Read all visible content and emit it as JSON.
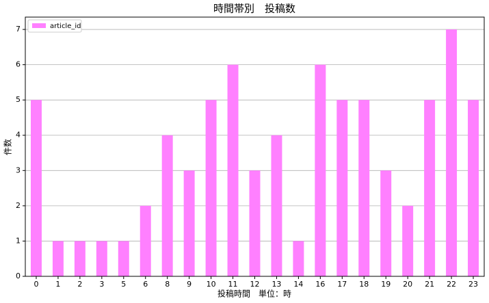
{
  "chart_data": {
    "type": "bar",
    "title": "時間帯別　投稿数",
    "x_label": "投稿時間　単位：時",
    "y_label": "件数",
    "categories": [
      "0",
      "1",
      "2",
      "3",
      "5",
      "6",
      "8",
      "9",
      "10",
      "11",
      "12",
      "13",
      "14",
      "16",
      "17",
      "18",
      "19",
      "20",
      "21",
      "22",
      "23"
    ],
    "series": [
      {
        "name": "article_id",
        "color": "#ff80ff",
        "values": [
          5,
          1,
          1,
          1,
          1,
          2,
          4,
          3,
          5,
          6,
          3,
          4,
          1,
          6,
          5,
          5,
          3,
          2,
          5,
          7,
          5
        ]
      }
    ],
    "ylim": [
      0,
      7.35
    ],
    "yticks": [
      0,
      1,
      2,
      3,
      4,
      5,
      6,
      7
    ],
    "grid": true,
    "legend": "upper left"
  }
}
